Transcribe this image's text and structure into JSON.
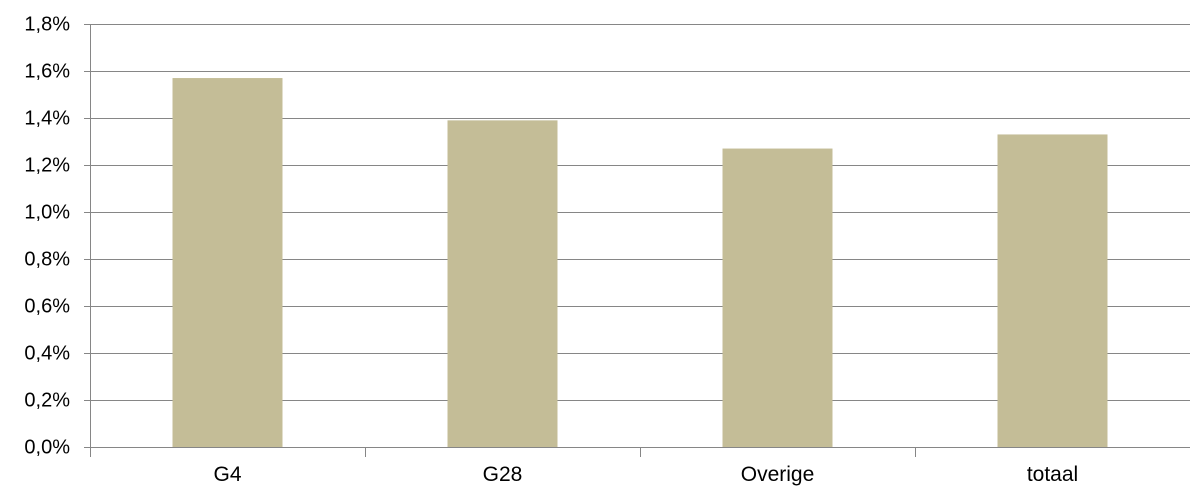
{
  "chart_data": {
    "type": "bar",
    "categories": [
      "G4",
      "G28",
      "Overige",
      "totaal"
    ],
    "values": [
      1.57,
      1.39,
      1.27,
      1.33
    ],
    "ylim": [
      0,
      1.8
    ],
    "y_ticks": [
      0.0,
      0.2,
      0.4,
      0.6,
      0.8,
      1.0,
      1.2,
      1.4,
      1.6,
      1.8
    ],
    "y_tick_labels": [
      "0,0%",
      "0,2%",
      "0,4%",
      "0,6%",
      "0,8%",
      "1,0%",
      "1,2%",
      "1,4%",
      "1,6%",
      "1,8%"
    ],
    "ylabel": "",
    "xlabel": "",
    "grid": true,
    "legend": "none",
    "bar_color": "#C4BD97",
    "gridline_color": "#868686"
  }
}
